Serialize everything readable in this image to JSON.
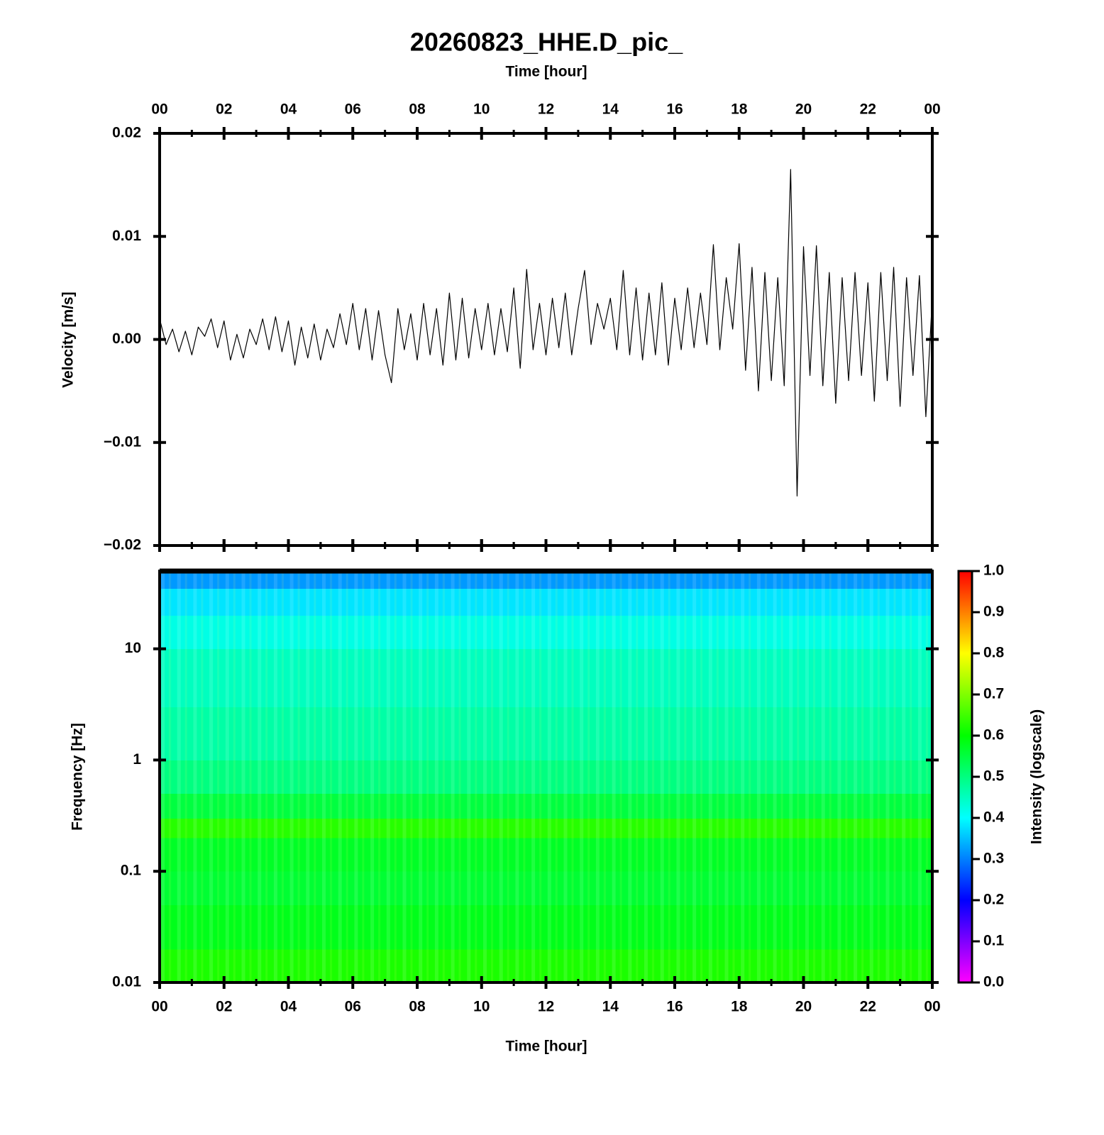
{
  "chart_data": [
    {
      "type": "line",
      "title": "20260823_HHE.D_pic_",
      "xlabel": "Time [hour]",
      "ylabel": "Velocity [m/s]",
      "color": "#000000",
      "xlim": [
        0,
        24
      ],
      "xticks": [
        {
          "value": 0,
          "label": "00"
        },
        {
          "value": 2,
          "label": "02"
        },
        {
          "value": 4,
          "label": "04"
        },
        {
          "value": 6,
          "label": "06"
        },
        {
          "value": 8,
          "label": "08"
        },
        10,
        12,
        14,
        16,
        18,
        20,
        22,
        {
          "value": 24,
          "label": "00"
        }
      ],
      "xminorticks": [
        1,
        3,
        5,
        7,
        9,
        11,
        13,
        15,
        17,
        19,
        21,
        23
      ],
      "ylim": [
        -0.02,
        0.02
      ],
      "yticks": [
        {
          "value": -0.02,
          "label": "−0.02"
        },
        {
          "value": -0.01,
          "label": "−0.01"
        },
        {
          "value": 0,
          "label": "0.00"
        },
        0.01,
        0.02
      ],
      "x": [
        0,
        0.2,
        0.4,
        0.6,
        0.8,
        1,
        1.2,
        1.4,
        1.6,
        1.8,
        2,
        2.2,
        2.4,
        2.6,
        2.8,
        3,
        3.2,
        3.4,
        3.6,
        3.8,
        4,
        4.2,
        4.4,
        4.6,
        4.8,
        5,
        5.2,
        5.4,
        5.6,
        5.8,
        6,
        6.2,
        6.4,
        6.6,
        6.8,
        7,
        7.2,
        7.4,
        7.6,
        7.8,
        8,
        8.2,
        8.4,
        8.6,
        8.8,
        9,
        9.2,
        9.4,
        9.6,
        9.8,
        10,
        10.2,
        10.4,
        10.6,
        10.8,
        11,
        11.2,
        11.4,
        11.6,
        11.8,
        12,
        12.2,
        12.4,
        12.6,
        12.8,
        13,
        13.2,
        13.4,
        13.6,
        13.8,
        14,
        14.2,
        14.4,
        14.6,
        14.8,
        15,
        15.2,
        15.4,
        15.6,
        15.8,
        16,
        16.2,
        16.4,
        16.6,
        16.8,
        17,
        17.2,
        17.4,
        17.6,
        17.8,
        18,
        18.2,
        18.4,
        18.6,
        18.8,
        19,
        19.2,
        19.4,
        19.6,
        19.8,
        20,
        20.2,
        20.4,
        20.6,
        20.8,
        21,
        21.2,
        21.4,
        21.6,
        21.8,
        22,
        22.2,
        22.4,
        22.6,
        22.8,
        23,
        23.2,
        23.4,
        23.6,
        23.8,
        24
      ],
      "values": [
        0.002,
        -0.0005,
        0.001,
        -0.0012,
        0.0008,
        -0.0015,
        0.0012,
        0.0003,
        0.002,
        -0.0008,
        0.0018,
        -0.002,
        0.0005,
        -0.0018,
        0.001,
        -0.0005,
        0.002,
        -0.001,
        0.0022,
        -0.0012,
        0.0018,
        -0.0025,
        0.0012,
        -0.0018,
        0.0015,
        -0.002,
        0.001,
        -0.0008,
        0.0025,
        -0.0005,
        0.0035,
        -0.001,
        0.003,
        -0.002,
        0.0028,
        -0.0015,
        -0.0042,
        0.003,
        -0.001,
        0.0025,
        -0.002,
        0.0035,
        -0.0015,
        0.003,
        -0.0025,
        0.0045,
        -0.002,
        0.004,
        -0.0018,
        0.003,
        -0.001,
        0.0035,
        -0.0015,
        0.003,
        -0.0012,
        0.005,
        -0.0028,
        0.0068,
        -0.001,
        0.0035,
        -0.0015,
        0.004,
        -0.0008,
        0.0045,
        -0.0015,
        0.003,
        0.0067,
        -0.0005,
        0.0035,
        0.001,
        0.004,
        -0.001,
        0.0067,
        -0.0015,
        0.005,
        -0.002,
        0.0045,
        -0.0015,
        0.0055,
        -0.0025,
        0.004,
        -0.001,
        0.005,
        -0.0008,
        0.0045,
        -0.0005,
        0.0092,
        -0.001,
        0.006,
        0.001,
        0.0093,
        -0.003,
        0.007,
        -0.005,
        0.0065,
        -0.004,
        0.006,
        -0.0045,
        0.0165,
        -0.0152,
        0.009,
        -0.0035,
        0.0091,
        -0.0045,
        0.0065,
        -0.0062,
        0.006,
        -0.004,
        0.0065,
        -0.0035,
        0.0055,
        -0.006,
        0.0065,
        -0.004,
        0.007,
        -0.0065,
        0.006,
        -0.0035,
        0.0062,
        -0.0075,
        0.004
      ]
    },
    {
      "type": "heatmap",
      "xlabel": "Time [hour]",
      "ylabel": "Frequency [Hz]",
      "log_y": true,
      "xlim": [
        0,
        24
      ],
      "xticks": [
        {
          "value": 0,
          "label": "00"
        },
        {
          "value": 2,
          "label": "02"
        },
        {
          "value": 4,
          "label": "04"
        },
        {
          "value": 6,
          "label": "06"
        },
        {
          "value": 8,
          "label": "08"
        },
        10,
        12,
        14,
        16,
        18,
        20,
        22,
        {
          "value": 24,
          "label": "00"
        }
      ],
      "xminorticks": [
        1,
        3,
        5,
        7,
        9,
        11,
        13,
        15,
        17,
        19,
        21,
        23
      ],
      "ylim": [
        0.01,
        50
      ],
      "yticks": [
        0.01,
        0.1,
        1,
        10
      ],
      "xbins": [
        0,
        2,
        4,
        6,
        8,
        10,
        12,
        14,
        16,
        18,
        20,
        22,
        24
      ],
      "ybins": [
        0.01,
        0.02,
        0.05,
        0.1,
        0.2,
        0.3,
        0.5,
        1,
        3,
        10,
        20,
        35,
        50
      ],
      "z": [
        [
          0.62,
          0.62,
          0.62,
          0.62,
          0.62,
          0.62,
          0.62,
          0.62,
          0.62,
          0.62,
          0.62,
          0.62
        ],
        [
          0.58,
          0.58,
          0.58,
          0.58,
          0.58,
          0.58,
          0.58,
          0.58,
          0.58,
          0.58,
          0.58,
          0.58
        ],
        [
          0.56,
          0.56,
          0.56,
          0.56,
          0.56,
          0.56,
          0.56,
          0.56,
          0.56,
          0.56,
          0.56,
          0.56
        ],
        [
          0.57,
          0.57,
          0.57,
          0.57,
          0.57,
          0.57,
          0.57,
          0.57,
          0.57,
          0.57,
          0.57,
          0.57
        ],
        [
          0.63,
          0.63,
          0.63,
          0.63,
          0.63,
          0.63,
          0.63,
          0.63,
          0.63,
          0.63,
          0.63,
          0.63
        ],
        [
          0.55,
          0.55,
          0.55,
          0.55,
          0.55,
          0.55,
          0.55,
          0.55,
          0.55,
          0.55,
          0.55,
          0.55
        ],
        [
          0.5,
          0.5,
          0.5,
          0.5,
          0.5,
          0.5,
          0.5,
          0.5,
          0.5,
          0.5,
          0.5,
          0.5
        ],
        [
          0.47,
          0.47,
          0.47,
          0.47,
          0.47,
          0.47,
          0.47,
          0.47,
          0.47,
          0.47,
          0.47,
          0.47
        ],
        [
          0.45,
          0.45,
          0.45,
          0.45,
          0.45,
          0.45,
          0.45,
          0.45,
          0.45,
          0.45,
          0.45,
          0.45
        ],
        [
          0.42,
          0.42,
          0.42,
          0.42,
          0.42,
          0.42,
          0.42,
          0.42,
          0.42,
          0.42,
          0.42,
          0.42
        ],
        [
          0.38,
          0.38,
          0.38,
          0.38,
          0.38,
          0.38,
          0.38,
          0.38,
          0.38,
          0.38,
          0.38,
          0.38
        ],
        [
          0.32,
          0.32,
          0.32,
          0.32,
          0.32,
          0.32,
          0.32,
          0.32,
          0.32,
          0.32,
          0.32,
          0.32
        ]
      ],
      "colorbar": {
        "label": "Intensity (logscale)",
        "lim": [
          0,
          1
        ],
        "colormap": [
          "#ff00ff",
          "#0000ff",
          "#00ffff",
          "#00ff00",
          "#ffff00",
          "#ff0000"
        ],
        "ticks": [
          {
            "value": 0,
            "label": "0.0"
          },
          0.1,
          0.2,
          0.3,
          0.4,
          0.5,
          0.6,
          0.7,
          0.8,
          0.9,
          {
            "value": 1,
            "label": "1.0"
          }
        ]
      }
    }
  ]
}
